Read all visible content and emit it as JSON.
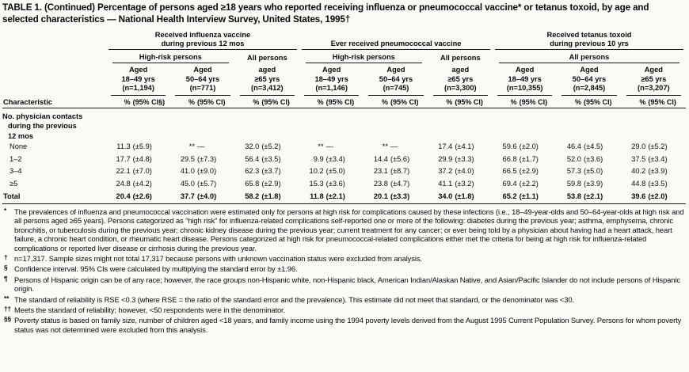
{
  "title": "TABLE 1. (Continued) Percentage of persons aged ≥18 years who reported receiving influenza or pneumococcal vaccine* or tetanus toxoid, by age and selected characteristics — National Health Interview Survey, United States, 1995†",
  "header": {
    "characteristic": "Characteristic",
    "groups": [
      {
        "line1": "Received influenza vaccine",
        "line2": "during previous 12 mos"
      },
      {
        "line1": "Ever received pneumococcal vaccine"
      },
      {
        "line1": "Received tetanus toxoid",
        "line2": "during previous 10 yrs"
      }
    ],
    "subgroups": {
      "high_risk": "High-risk persons",
      "all_persons": "All persons"
    },
    "columns": [
      {
        "l1": "Aged",
        "l2": "18–49 yrs",
        "l3": "(n=1,194)",
        "pct": "%",
        "ci": "(95% CI§)"
      },
      {
        "l1": "Aged",
        "l2": "50–64 yrs",
        "l3": "(n=771)",
        "pct": "%",
        "ci": "(95% CI)"
      },
      {
        "l1": "aged",
        "l2": "≥65 yrs",
        "l3": "(n=3,412)",
        "pct": "%",
        "ci": "(95% CI)"
      },
      {
        "l1": "Aged",
        "l2": "18–49 yrs",
        "l3": "(n=1,146)",
        "pct": "%",
        "ci": "(95% CI)"
      },
      {
        "l1": "Aged",
        "l2": "50–64 yrs",
        "l3": "(n=745)",
        "pct": "%",
        "ci": "(95% CI)"
      },
      {
        "l1": "aged",
        "l2": "≥65 yrs",
        "l3": "(n=3,300)",
        "pct": "%",
        "ci": "(95% CI)"
      },
      {
        "l1": "Aged",
        "l2": "18–49 yrs",
        "l3": "(n=10,355)",
        "pct": "%",
        "ci": "(95% CI)"
      },
      {
        "l1": "Aged",
        "l2": "50–64 yrs",
        "l3": "(n=2,845)",
        "pct": "%",
        "ci": "(95% CI)"
      },
      {
        "l1": "Aged",
        "l2": "≥65 yrs",
        "l3": "(n=3,207)",
        "pct": "%",
        "ci": "(95% CI)"
      }
    ]
  },
  "body": {
    "section": {
      "l1": "No. physician contacts",
      "l2": "during the previous",
      "l3": "12 mos"
    },
    "rows": [
      {
        "label": "None",
        "cells": [
          {
            "pct": "11.3",
            "ci": "(±5.9)"
          },
          {
            "pct": "**",
            "ci": "—"
          },
          {
            "pct": "32.0",
            "ci": "(±5.2)"
          },
          {
            "pct": "**",
            "ci": "—"
          },
          {
            "pct": "**",
            "ci": "—"
          },
          {
            "pct": "17.4",
            "ci": "(±4.1)"
          },
          {
            "pct": "59.6",
            "ci": "(±2.0)"
          },
          {
            "pct": "46.4",
            "ci": "(±4.5)"
          },
          {
            "pct": "29.0",
            "ci": "(±5.2)"
          }
        ]
      },
      {
        "label": "1–2",
        "cells": [
          {
            "pct": "17.7",
            "ci": "(±4.8)"
          },
          {
            "pct": "29.5",
            "ci": "(±7.3)"
          },
          {
            "pct": "56.4",
            "ci": "(±3.5)"
          },
          {
            "pct": "9.9",
            "ci": "(±3.4)"
          },
          {
            "pct": "14.4",
            "ci": "(±5.6)"
          },
          {
            "pct": "29.9",
            "ci": "(±3.3)"
          },
          {
            "pct": "66.8",
            "ci": "(±1.7)"
          },
          {
            "pct": "52.0",
            "ci": "(±3.6)"
          },
          {
            "pct": "37.5",
            "ci": "(±3.4)"
          }
        ]
      },
      {
        "label": "3–4",
        "cells": [
          {
            "pct": "22.1",
            "ci": "(±7.0)"
          },
          {
            "pct": "41.0",
            "ci": "(±9.0)"
          },
          {
            "pct": "62.3",
            "ci": "(±3.7)"
          },
          {
            "pct": "10.2",
            "ci": "(±5.0)"
          },
          {
            "pct": "23.1",
            "ci": "(±8.7)"
          },
          {
            "pct": "37.2",
            "ci": "(±4.0)"
          },
          {
            "pct": "66.5",
            "ci": "(±2.9)"
          },
          {
            "pct": "57.3",
            "ci": "(±5.0)"
          },
          {
            "pct": "40.2",
            "ci": "(±3.9)"
          }
        ]
      },
      {
        "label": "≥5",
        "cells": [
          {
            "pct": "24.8",
            "ci": "(±4.2)"
          },
          {
            "pct": "45.0",
            "ci": "(±5.7)"
          },
          {
            "pct": "65.8",
            "ci": "(±2.9)"
          },
          {
            "pct": "15.3",
            "ci": "(±3.6)"
          },
          {
            "pct": "23.8",
            "ci": "(±4.7)"
          },
          {
            "pct": "41.1",
            "ci": "(±3.2)"
          },
          {
            "pct": "69.4",
            "ci": "(±2.2)"
          },
          {
            "pct": "59.8",
            "ci": "(±3.9)"
          },
          {
            "pct": "44.8",
            "ci": "(±3.5)"
          }
        ]
      }
    ],
    "total": {
      "label": "Total",
      "cells": [
        {
          "pct": "20.4",
          "ci": "(±2.6)"
        },
        {
          "pct": "37.7",
          "ci": "(±4.0)"
        },
        {
          "pct": "58.2",
          "ci": "(±1.8)"
        },
        {
          "pct": "11.8",
          "ci": "(±2.1)"
        },
        {
          "pct": "20.1",
          "ci": "(±3.3)"
        },
        {
          "pct": "34.0",
          "ci": "(±1.8)"
        },
        {
          "pct": "65.2",
          "ci": "(±1.1)"
        },
        {
          "pct": "53.8",
          "ci": "(±2.1)"
        },
        {
          "pct": "39.6",
          "ci": "(±2.0)"
        }
      ]
    }
  },
  "footnotes": [
    {
      "marker": "*",
      "text": "The prevalences of influenza and pneumococcal vaccination were estimated only for persons at high risk for complications caused by these infections (i.e., 18–49-year-olds and 50–64-year-olds at high risk and all persons aged ≥65 years). Persons categorized as “high risk” for influenza-related complications self-reported one or more of the following: diabetes during the previous year; asthma, emphysema, chronic bronchitis, or tuberculosis during the previous year; chronic kidney disease during the previous year; current treatment for any cancer; or ever being told by a physician about having had a heart attack, heart failure, a chronic heart condition, or rheumatic heart disease. Persons categorized at high risk for pneumococcal-related complications either met the criteria for being at high risk for influenza-related complications or reported liver disease or cirrhosis during the previous year."
    },
    {
      "marker": "†",
      "text": "n=17,317. Sample sizes might not total 17,317 because persons with unknown vaccination status were excluded from analysis."
    },
    {
      "marker": "§",
      "text": "Confidence interval. 95% CIs were calculated by multiplying the standard error by ±1.96."
    },
    {
      "marker": "¶",
      "text": "Persons of Hispanic origin can be of any race; however, the race groups non-Hispanic white, non-Hispanic black, American Indian/Alaskan Native, and Asian/Pacific Islander do not include persons of Hispanic origin."
    },
    {
      "marker": "**",
      "text": "The standard of reliability is RSE <0.3 (where RSE = the ratio of the standard error and the prevalence). This estimate did not meet that standard, or the denominator was <30."
    },
    {
      "marker": "††",
      "text": "Meets the standard of reliability; however, <50 respondents were in the denominator."
    },
    {
      "marker": "§§",
      "text": "Poverty status is based on family size, number of children aged <18 years, and family income using the 1994 poverty levels derived from the August 1995 Current Population Survey. Persons for whom poverty status was not determined were excluded from this analysis."
    }
  ]
}
